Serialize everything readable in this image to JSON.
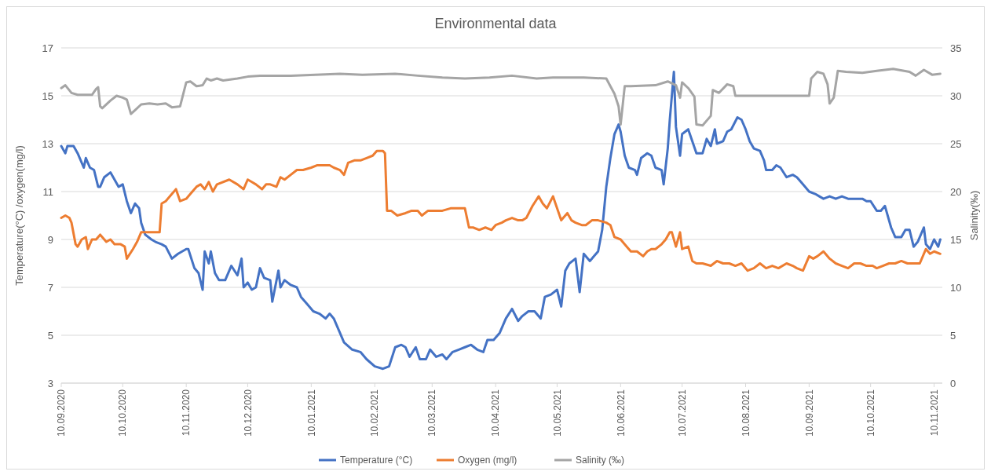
{
  "chart_data": {
    "type": "line",
    "title": "Environmental data",
    "ylabel": "Temperature(°C) /oxygen(mg/l)",
    "y2label": "Salinity(‰)",
    "xlim": [
      "2020-09-10",
      "2021-11-14"
    ],
    "xticks": [
      {
        "value": "2020-09-10",
        "label": "10.09.2020"
      },
      {
        "value": "2020-10-10",
        "label": "10.10.2020"
      },
      {
        "value": "2020-11-10",
        "label": "10.11.2020"
      },
      {
        "value": "2020-12-10",
        "label": "10.12.2020"
      },
      {
        "value": "2021-01-10",
        "label": "10.01.2021"
      },
      {
        "value": "2021-02-10",
        "label": "10.02.2021"
      },
      {
        "value": "2021-03-10",
        "label": "10.03.2021"
      },
      {
        "value": "2021-04-10",
        "label": "10.04.2021"
      },
      {
        "value": "2021-05-10",
        "label": "10.05.2021"
      },
      {
        "value": "2021-06-10",
        "label": "10.06.2021"
      },
      {
        "value": "2021-07-10",
        "label": "10.07.2021"
      },
      {
        "value": "2021-08-10",
        "label": "10.08.2021"
      },
      {
        "value": "2021-09-10",
        "label": "10.09.2021"
      },
      {
        "value": "2021-10-10",
        "label": "10.10.2021"
      },
      {
        "value": "2021-11-10",
        "label": "10.11.2021"
      }
    ],
    "ylim": [
      3,
      17
    ],
    "yticks": [
      3,
      5,
      7,
      9,
      11,
      13,
      15,
      17
    ],
    "y2lim": [
      0,
      35
    ],
    "y2ticks": [
      0,
      5,
      10,
      15,
      20,
      25,
      30,
      35
    ],
    "grid": "y",
    "legend": "bottom",
    "line_style": "solid",
    "marker": "none",
    "series": [
      {
        "name": "Temperature (°C)",
        "color": "#4472c4",
        "x": [
          "2020-09-10",
          "2020-09-12",
          "2020-09-13",
          "2020-09-16",
          "2020-09-18",
          "2020-09-21",
          "2020-09-22",
          "2020-09-24",
          "2020-09-26",
          "2020-09-28",
          "2020-09-29",
          "2020-10-01",
          "2020-10-04",
          "2020-10-06",
          "2020-10-08",
          "2020-10-10",
          "2020-10-12",
          "2020-10-14",
          "2020-10-16",
          "2020-10-18",
          "2020-10-19",
          "2020-10-21",
          "2020-10-24",
          "2020-10-26",
          "2020-10-29",
          "2020-10-31",
          "2020-11-03",
          "2020-11-06",
          "2020-11-10",
          "2020-11-11",
          "2020-11-14",
          "2020-11-16",
          "2020-11-18",
          "2020-11-19",
          "2020-11-21",
          "2020-11-22",
          "2020-11-24",
          "2020-11-26",
          "2020-11-29",
          "2020-12-02",
          "2020-12-05",
          "2020-12-07",
          "2020-12-08",
          "2020-12-10",
          "2020-12-12",
          "2020-12-14",
          "2020-12-16",
          "2020-12-18",
          "2020-12-21",
          "2020-12-22",
          "2020-12-25",
          "2020-12-26",
          "2020-12-28",
          "2020-12-31",
          "2021-01-03",
          "2021-01-05",
          "2021-01-08",
          "2021-01-11",
          "2021-01-14",
          "2021-01-17",
          "2021-01-19",
          "2021-01-21",
          "2021-01-24",
          "2021-01-26",
          "2021-01-30",
          "2021-02-03",
          "2021-02-06",
          "2021-02-10",
          "2021-02-14",
          "2021-02-17",
          "2021-02-20",
          "2021-02-23",
          "2021-02-25",
          "2021-02-27",
          "2021-03-02",
          "2021-03-04",
          "2021-03-07",
          "2021-03-09",
          "2021-03-12",
          "2021-03-15",
          "2021-03-17",
          "2021-03-20",
          "2021-03-23",
          "2021-03-26",
          "2021-03-29",
          "2021-04-01",
          "2021-04-04",
          "2021-04-06",
          "2021-04-09",
          "2021-04-12",
          "2021-04-15",
          "2021-04-18",
          "2021-04-21",
          "2021-04-23",
          "2021-04-26",
          "2021-04-29",
          "2021-05-02",
          "2021-05-04",
          "2021-05-07",
          "2021-05-10",
          "2021-05-12",
          "2021-05-14",
          "2021-05-16",
          "2021-05-19",
          "2021-05-21",
          "2021-05-23",
          "2021-05-26",
          "2021-05-28",
          "2021-05-30",
          "2021-06-01",
          "2021-06-03",
          "2021-06-05",
          "2021-06-07",
          "2021-06-09",
          "2021-06-10",
          "2021-06-12",
          "2021-06-14",
          "2021-06-17",
          "2021-06-18",
          "2021-06-20",
          "2021-06-23",
          "2021-06-25",
          "2021-06-27",
          "2021-06-30",
          "2021-07-01",
          "2021-07-03",
          "2021-07-04",
          "2021-07-06",
          "2021-07-07",
          "2021-07-09",
          "2021-07-10",
          "2021-07-13",
          "2021-07-15",
          "2021-07-17",
          "2021-07-20",
          "2021-07-22",
          "2021-07-24",
          "2021-07-26",
          "2021-07-27",
          "2021-07-30",
          "2021-08-01",
          "2021-08-03",
          "2021-08-06",
          "2021-08-08",
          "2021-08-10",
          "2021-08-12",
          "2021-08-14",
          "2021-08-17",
          "2021-08-19",
          "2021-08-20",
          "2021-08-23",
          "2021-08-25",
          "2021-08-27",
          "2021-08-30",
          "2021-09-02",
          "2021-09-04",
          "2021-09-07",
          "2021-09-10",
          "2021-09-13",
          "2021-09-15",
          "2021-09-17",
          "2021-09-20",
          "2021-09-23",
          "2021-09-26",
          "2021-09-29",
          "2021-10-03",
          "2021-10-06",
          "2021-10-08",
          "2021-10-10",
          "2021-10-13",
          "2021-10-15",
          "2021-10-17",
          "2021-10-20",
          "2021-10-22",
          "2021-10-25",
          "2021-10-27",
          "2021-10-29",
          "2021-10-31",
          "2021-11-02",
          "2021-11-05",
          "2021-11-06",
          "2021-11-08",
          "2021-11-10",
          "2021-11-12",
          "2021-11-13"
        ],
        "values": [
          12.9,
          12.6,
          12.9,
          12.9,
          12.6,
          12.0,
          12.4,
          12.0,
          11.9,
          11.2,
          11.2,
          11.6,
          11.8,
          11.5,
          11.2,
          11.3,
          10.6,
          10.1,
          10.5,
          10.3,
          9.7,
          9.2,
          9.0,
          8.9,
          8.8,
          8.7,
          8.2,
          8.4,
          8.6,
          8.6,
          7.8,
          7.6,
          6.9,
          8.5,
          8.0,
          8.5,
          7.6,
          7.3,
          7.3,
          7.9,
          7.5,
          8.2,
          7.0,
          7.2,
          6.9,
          7.0,
          7.8,
          7.4,
          7.3,
          6.4,
          7.7,
          7.0,
          7.3,
          7.1,
          7.0,
          6.6,
          6.3,
          6.0,
          5.9,
          5.7,
          5.9,
          5.7,
          5.1,
          4.7,
          4.4,
          4.3,
          4.0,
          3.7,
          3.6,
          3.7,
          4.5,
          4.6,
          4.5,
          4.1,
          4.5,
          4.0,
          4.0,
          4.4,
          4.1,
          4.2,
          4.0,
          4.3,
          4.4,
          4.5,
          4.6,
          4.4,
          4.3,
          4.8,
          4.8,
          5.1,
          5.7,
          6.1,
          5.6,
          5.8,
          6.0,
          6.0,
          5.7,
          6.6,
          6.7,
          6.9,
          6.2,
          7.7,
          8.0,
          8.2,
          6.8,
          8.4,
          8.1,
          8.3,
          8.5,
          9.4,
          11.2,
          12.4,
          13.4,
          13.8,
          13.5,
          12.5,
          12.0,
          11.9,
          11.7,
          12.4,
          12.6,
          12.5,
          12.0,
          11.9,
          11.3,
          12.8,
          14.0,
          16.0,
          13.7,
          12.5,
          13.4,
          13.6,
          13.1,
          12.6,
          12.6,
          13.2,
          12.9,
          13.6,
          13.0,
          13.1,
          13.5,
          13.6,
          14.1,
          14.0,
          13.6,
          13.1,
          12.8,
          12.7,
          12.3,
          11.9,
          11.9,
          12.1,
          12.0,
          11.6,
          11.7,
          11.6,
          11.3,
          11.0,
          10.9,
          10.8,
          10.7,
          10.8,
          10.7,
          10.8,
          10.7,
          10.7,
          10.7,
          10.6,
          10.6,
          10.2,
          10.2,
          10.4,
          9.5,
          9.1,
          9.1,
          9.4,
          9.4,
          8.7,
          8.9,
          9.5,
          8.8,
          8.6,
          9.0,
          8.7,
          9.0
        ]
      },
      {
        "name": "Oxygen (mg/l)",
        "color": "#ed7d31",
        "x": [
          "2020-09-10",
          "2020-09-12",
          "2020-09-14",
          "2020-09-15",
          "2020-09-17",
          "2020-09-18",
          "2020-09-20",
          "2020-09-22",
          "2020-09-23",
          "2020-09-25",
          "2020-09-27",
          "2020-09-29",
          "2020-10-02",
          "2020-10-04",
          "2020-10-06",
          "2020-10-09",
          "2020-10-11",
          "2020-10-12",
          "2020-10-15",
          "2020-10-17",
          "2020-10-19",
          "2020-10-25",
          "2020-10-28",
          "2020-10-29",
          "2020-10-31",
          "2020-11-03",
          "2020-11-05",
          "2020-11-07",
          "2020-11-10",
          "2020-11-12",
          "2020-11-15",
          "2020-11-17",
          "2020-11-19",
          "2020-11-21",
          "2020-11-23",
          "2020-11-25",
          "2020-12-01",
          "2020-12-05",
          "2020-12-08",
          "2020-12-10",
          "2020-12-12",
          "2020-12-14",
          "2020-12-17",
          "2020-12-19",
          "2020-12-21",
          "2020-12-24",
          "2020-12-26",
          "2020-12-28",
          "2020-12-31",
          "2021-01-03",
          "2021-01-06",
          "2021-01-10",
          "2021-01-13",
          "2021-01-19",
          "2021-01-21",
          "2021-01-24",
          "2021-01-26",
          "2021-01-28",
          "2021-01-31",
          "2021-02-03",
          "2021-02-06",
          "2021-02-09",
          "2021-02-11",
          "2021-02-14",
          "2021-02-15",
          "2021-02-16",
          "2021-02-18",
          "2021-02-21",
          "2021-02-25",
          "2021-02-28",
          "2021-03-03",
          "2021-03-05",
          "2021-03-08",
          "2021-03-11",
          "2021-03-15",
          "2021-03-19",
          "2021-03-22",
          "2021-03-26",
          "2021-03-28",
          "2021-03-30",
          "2021-04-02",
          "2021-04-05",
          "2021-04-08",
          "2021-04-10",
          "2021-04-13",
          "2021-04-15",
          "2021-04-18",
          "2021-04-21",
          "2021-04-23",
          "2021-04-25",
          "2021-04-28",
          "2021-05-01",
          "2021-05-03",
          "2021-05-05",
          "2021-05-08",
          "2021-05-10",
          "2021-05-12",
          "2021-05-15",
          "2021-05-17",
          "2021-05-19",
          "2021-05-22",
          "2021-05-24",
          "2021-05-27",
          "2021-05-30",
          "2021-06-03",
          "2021-06-05",
          "2021-06-07",
          "2021-06-10",
          "2021-06-13",
          "2021-06-15",
          "2021-06-18",
          "2021-06-21",
          "2021-06-23",
          "2021-06-25",
          "2021-06-27",
          "2021-06-30",
          "2021-07-02",
          "2021-07-04",
          "2021-07-05",
          "2021-07-07",
          "2021-07-09",
          "2021-07-10",
          "2021-07-13",
          "2021-07-15",
          "2021-07-17",
          "2021-07-20",
          "2021-07-24",
          "2021-07-27",
          "2021-07-30",
          "2021-08-02",
          "2021-08-05",
          "2021-08-08",
          "2021-08-11",
          "2021-08-14",
          "2021-08-17",
          "2021-08-20",
          "2021-08-23",
          "2021-08-26",
          "2021-08-30",
          "2021-09-02",
          "2021-09-04",
          "2021-09-07",
          "2021-09-10",
          "2021-09-12",
          "2021-09-14",
          "2021-09-17",
          "2021-09-20",
          "2021-09-23",
          "2021-09-26",
          "2021-09-29",
          "2021-10-02",
          "2021-10-05",
          "2021-10-08",
          "2021-10-11",
          "2021-10-13",
          "2021-10-16",
          "2021-10-19",
          "2021-10-22",
          "2021-10-25",
          "2021-10-28",
          "2021-10-31",
          "2021-11-03",
          "2021-11-06",
          "2021-11-08",
          "2021-11-10",
          "2021-11-13"
        ],
        "values": [
          9.9,
          10.0,
          9.9,
          9.7,
          8.8,
          8.7,
          9.0,
          9.1,
          8.6,
          9.0,
          9.0,
          9.2,
          8.9,
          9.0,
          8.8,
          8.8,
          8.7,
          8.2,
          8.6,
          8.9,
          9.3,
          9.3,
          9.3,
          10.5,
          10.6,
          10.9,
          11.1,
          10.6,
          10.7,
          10.9,
          11.2,
          11.3,
          11.1,
          11.4,
          11.0,
          11.3,
          11.5,
          11.3,
          11.1,
          11.5,
          11.4,
          11.3,
          11.1,
          11.3,
          11.3,
          11.2,
          11.6,
          11.5,
          11.7,
          11.9,
          11.9,
          12.0,
          12.1,
          12.1,
          12.0,
          11.9,
          11.7,
          12.2,
          12.3,
          12.3,
          12.4,
          12.5,
          12.7,
          12.7,
          12.6,
          10.2,
          10.2,
          10.0,
          10.1,
          10.2,
          10.2,
          10.0,
          10.2,
          10.2,
          10.2,
          10.3,
          10.3,
          10.3,
          9.5,
          9.5,
          9.4,
          9.5,
          9.4,
          9.6,
          9.7,
          9.8,
          9.9,
          9.8,
          9.8,
          9.9,
          10.4,
          10.8,
          10.5,
          10.3,
          10.8,
          10.3,
          9.8,
          10.1,
          9.8,
          9.7,
          9.6,
          9.6,
          9.8,
          9.8,
          9.7,
          9.6,
          9.1,
          9.0,
          8.7,
          8.5,
          8.5,
          8.3,
          8.5,
          8.6,
          8.6,
          8.8,
          9.0,
          9.3,
          9.3,
          8.7,
          9.3,
          8.6,
          8.7,
          8.1,
          8.0,
          8.0,
          7.9,
          8.1,
          8.0,
          8.0,
          7.9,
          8.0,
          7.7,
          7.8,
          8.0,
          7.8,
          7.9,
          7.8,
          8.0,
          7.9,
          7.8,
          7.7,
          8.3,
          8.2,
          8.3,
          8.5,
          8.2,
          8.0,
          7.9,
          7.8,
          8.0,
          8.0,
          7.9,
          7.9,
          7.8,
          7.9,
          8.0,
          8.0,
          8.1,
          8.0,
          8.0,
          8.0,
          8.6,
          8.4,
          8.5,
          8.4
        ]
      },
      {
        "name": "Salinity (‰)",
        "color": "#a5a5a5",
        "axis": "y2",
        "x": [
          "2020-09-10",
          "2020-09-12",
          "2020-09-15",
          "2020-09-18",
          "2020-09-25",
          "2020-09-27",
          "2020-09-28",
          "2020-09-29",
          "2020-09-30",
          "2020-10-04",
          "2020-10-07",
          "2020-10-10",
          "2020-10-12",
          "2020-10-14",
          "2020-10-16",
          "2020-10-19",
          "2020-10-23",
          "2020-10-27",
          "2020-10-31",
          "2020-11-03",
          "2020-11-07",
          "2020-11-10",
          "2020-11-12",
          "2020-11-15",
          "2020-11-18",
          "2020-11-20",
          "2020-11-22",
          "2020-11-25",
          "2020-11-28",
          "2020-12-05",
          "2020-12-10",
          "2020-12-16",
          "2020-12-31",
          "2021-01-12",
          "2021-01-24",
          "2021-02-04",
          "2021-02-20",
          "2021-03-03",
          "2021-03-15",
          "2021-03-26",
          "2021-04-07",
          "2021-04-18",
          "2021-04-30",
          "2021-05-08",
          "2021-05-23",
          "2021-06-03",
          "2021-06-07",
          "2021-06-09",
          "2021-06-10",
          "2021-06-12",
          "2021-06-15",
          "2021-06-27",
          "2021-07-03",
          "2021-07-07",
          "2021-07-09",
          "2021-07-10",
          "2021-07-13",
          "2021-07-16",
          "2021-07-17",
          "2021-07-20",
          "2021-07-24",
          "2021-07-25",
          "2021-07-28",
          "2021-08-01",
          "2021-08-04",
          "2021-08-05",
          "2021-08-16",
          "2021-09-01",
          "2021-09-10",
          "2021-09-11",
          "2021-09-14",
          "2021-09-17",
          "2021-09-19",
          "2021-09-20",
          "2021-09-22",
          "2021-09-24",
          "2021-09-28",
          "2021-10-06",
          "2021-10-13",
          "2021-10-21",
          "2021-10-29",
          "2021-11-01",
          "2021-11-05",
          "2021-11-09",
          "2021-11-13"
        ],
        "values": [
          30.8,
          31.1,
          30.3,
          30.1,
          30.1,
          30.7,
          30.9,
          28.9,
          28.7,
          29.5,
          30.0,
          29.8,
          29.6,
          28.1,
          28.5,
          29.1,
          29.2,
          29.1,
          29.2,
          28.8,
          28.9,
          31.4,
          31.5,
          31.0,
          31.1,
          31.8,
          31.6,
          31.8,
          31.6,
          31.8,
          32.0,
          32.1,
          32.1,
          32.2,
          32.3,
          32.2,
          32.3,
          32.1,
          31.9,
          31.8,
          31.9,
          32.1,
          31.8,
          31.9,
          31.9,
          31.8,
          30.2,
          28.9,
          27.0,
          31.0,
          31.0,
          31.1,
          31.5,
          31.1,
          29.8,
          31.4,
          30.8,
          29.9,
          27.0,
          26.9,
          27.9,
          30.6,
          30.3,
          31.2,
          31.0,
          30.0,
          30.0,
          30.0,
          30.0,
          31.8,
          32.5,
          32.3,
          31.2,
          29.2,
          29.8,
          32.6,
          32.5,
          32.4,
          32.6,
          32.8,
          32.5,
          32.1,
          32.7,
          32.2,
          32.3
        ]
      }
    ]
  }
}
